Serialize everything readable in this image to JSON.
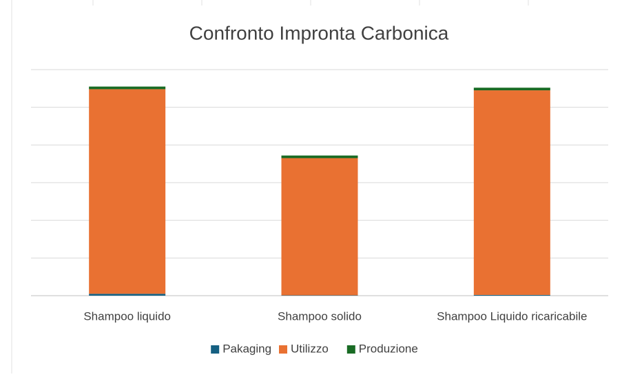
{
  "chart_data": {
    "type": "stacked_bar",
    "title": "Confronto Impronta Carbonica",
    "categories": [
      "Shampoo liquido",
      "Shampoo solido",
      "Shampoo Liquido ricaricabile"
    ],
    "series": [
      {
        "name": "Pakaging",
        "color": "#156082",
        "values": [
          0.05,
          0.01,
          0.02
        ]
      },
      {
        "name": "Utilizzo",
        "color": "#e97132",
        "values": [
          5.43,
          3.64,
          5.43
        ]
      },
      {
        "name": "Produzione",
        "color": "#196b24",
        "values": [
          0.07,
          0.07,
          0.07
        ]
      }
    ],
    "ylim": [
      0,
      6
    ],
    "yticks": [
      0,
      1,
      2,
      3,
      4,
      5,
      6
    ],
    "grid": true,
    "legend": "bottom"
  }
}
